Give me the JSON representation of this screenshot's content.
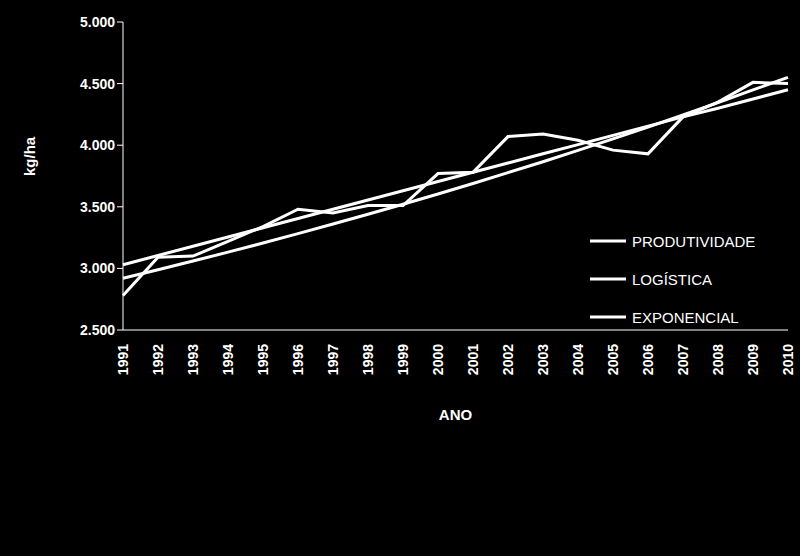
{
  "chart_data": {
    "type": "line",
    "x_label": "ANO",
    "y_label": "kg/ha",
    "categories": [
      "1991",
      "1992",
      "1993",
      "1994",
      "1995",
      "1996",
      "1997",
      "1998",
      "1999",
      "2000",
      "2001",
      "2002",
      "2003",
      "2004",
      "2005",
      "2006",
      "2007",
      "2008",
      "2009",
      "2010"
    ],
    "series": [
      {
        "name": "PRODUTIVIDADE",
        "color": "#ffffff",
        "values": [
          2780,
          3090,
          3100,
          3220,
          3340,
          3480,
          3450,
          3510,
          3510,
          3770,
          3780,
          4070,
          4090,
          4040,
          3960,
          3930,
          4230,
          4350,
          4510,
          4500
        ]
      },
      {
        "name": "LOGÍSTICA",
        "color": "#ffffff",
        "values": [
          3030,
          3105,
          3180,
          3255,
          3330,
          3405,
          3480,
          3555,
          3630,
          3705,
          3780,
          3855,
          3930,
          4005,
          4080,
          4155,
          4230,
          4300,
          4375,
          4450
        ]
      },
      {
        "name": "EXPONENCIAL",
        "color": "#ffffff",
        "values": [
          2920,
          2989,
          3060,
          3132,
          3206,
          3282,
          3360,
          3439,
          3521,
          3604,
          3689,
          3777,
          3866,
          3958,
          4051,
          4147,
          4245,
          4346,
          4449,
          4550
        ]
      }
    ],
    "ylim": [
      2500,
      5000
    ],
    "yticks": [
      {
        "value": 2500,
        "label": "2.500"
      },
      {
        "value": 3000,
        "label": "3.000"
      },
      {
        "value": 3500,
        "label": "3.500"
      },
      {
        "value": 4000,
        "label": "4.000"
      },
      {
        "value": 4500,
        "label": "4.500"
      },
      {
        "value": 5000,
        "label": "5.000"
      }
    ],
    "grid": false,
    "legend": "right",
    "marker": "none",
    "line_style": "solid"
  }
}
